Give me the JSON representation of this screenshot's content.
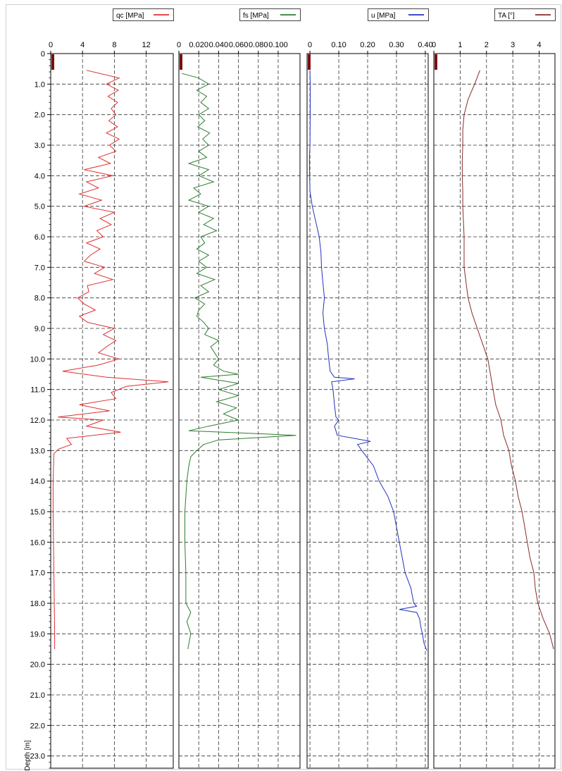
{
  "chart_data": {
    "type": "line",
    "layout": "vertical multi-track log (depth increasing downward)",
    "y_axis": {
      "label": "Depth [m]",
      "range": [
        0,
        23.4
      ],
      "ticks": [
        0,
        1,
        2,
        3,
        4,
        5,
        6,
        7,
        8,
        9,
        10,
        11,
        12,
        13,
        14,
        15,
        16,
        17,
        18,
        19,
        20,
        21,
        22,
        23
      ],
      "tick_labels": [
        "0",
        "1.0",
        "2.0",
        "3.0",
        "4.0",
        "5.0",
        "6.0",
        "7.0",
        "8.0",
        "9.0",
        "10.0",
        "11.0",
        "12.0",
        "13.0",
        "14.0",
        "15.0",
        "16.0",
        "17.0",
        "18.0",
        "19.0",
        "20.0",
        "21.0",
        "22.0",
        "23.0"
      ]
    },
    "grid": "dashed",
    "tracks": [
      {
        "name": "qc [MPa]",
        "color": "#e03030",
        "xlim": [
          0,
          15.4
        ],
        "ticks": [
          0,
          4,
          8,
          12
        ],
        "tick_labels": [
          "0",
          "4",
          "8",
          "12"
        ],
        "depth": [
          0.55,
          0.8,
          1.0,
          1.2,
          1.4,
          1.6,
          1.8,
          2.0,
          2.2,
          2.4,
          2.6,
          2.8,
          3.0,
          3.2,
          3.4,
          3.6,
          3.8,
          4.0,
          4.2,
          4.4,
          4.6,
          4.8,
          5.0,
          5.2,
          5.4,
          5.6,
          5.8,
          6.0,
          6.2,
          6.4,
          6.6,
          6.8,
          7.0,
          7.2,
          7.4,
          7.6,
          7.8,
          8.0,
          8.2,
          8.4,
          8.6,
          8.8,
          9.0,
          9.2,
          9.4,
          9.6,
          9.8,
          10.0,
          10.2,
          10.4,
          10.6,
          10.75,
          10.9,
          11.1,
          11.3,
          11.5,
          11.7,
          11.9,
          12.0,
          12.2,
          12.4,
          12.6,
          12.8,
          12.95,
          13.1,
          13.5,
          14.0,
          15.0,
          16.0,
          17.0,
          18.0,
          19.0,
          19.5
        ],
        "values": [
          4.5,
          8.6,
          7.0,
          8.5,
          7.2,
          8.4,
          7.6,
          8.2,
          7.3,
          8.4,
          7.0,
          8.6,
          7.4,
          8.2,
          6.0,
          7.5,
          4.2,
          7.8,
          4.5,
          6.0,
          3.6,
          6.4,
          4.2,
          8.0,
          6.2,
          7.6,
          5.8,
          6.6,
          4.5,
          6.2,
          5.0,
          4.2,
          6.8,
          5.5,
          7.8,
          4.6,
          4.8,
          3.4,
          4.2,
          5.6,
          3.6,
          4.6,
          8.0,
          6.6,
          8.2,
          7.0,
          6.0,
          8.6,
          6.0,
          1.5,
          7.0,
          14.8,
          9.5,
          7.6,
          8.2,
          3.6,
          7.4,
          0.9,
          6.6,
          4.5,
          8.8,
          2.0,
          2.6,
          1.0,
          0.4,
          0.35,
          0.3,
          0.3,
          0.35,
          0.4,
          0.45,
          0.5,
          0.5
        ]
      },
      {
        "name": "fs [MPa]",
        "color": "#2f7d2f",
        "xlim": [
          0,
          0.122
        ],
        "ticks": [
          0,
          0.02,
          0.04,
          0.06,
          0.08,
          0.1
        ],
        "tick_labels": [
          "0",
          "0.020",
          "0.040",
          "0.060",
          "0.080",
          "0.100"
        ],
        "depth": [
          0.65,
          0.8,
          1.0,
          1.2,
          1.4,
          1.6,
          1.8,
          2.0,
          2.2,
          2.4,
          2.6,
          2.8,
          3.0,
          3.2,
          3.4,
          3.6,
          3.8,
          4.0,
          4.2,
          4.4,
          4.6,
          4.8,
          5.0,
          5.2,
          5.4,
          5.6,
          5.8,
          6.0,
          6.2,
          6.4,
          6.6,
          6.8,
          7.0,
          7.2,
          7.4,
          7.6,
          7.8,
          8.0,
          8.2,
          8.4,
          8.6,
          8.8,
          9.0,
          9.2,
          9.4,
          9.6,
          9.8,
          10.0,
          10.2,
          10.4,
          10.5,
          10.6,
          10.8,
          11.0,
          11.2,
          11.4,
          11.6,
          11.8,
          12.0,
          12.2,
          12.35,
          12.5,
          12.65,
          12.8,
          13.0,
          13.2,
          13.5,
          14.0,
          15.0,
          16.0,
          17.0,
          18.0,
          18.3,
          18.6,
          19.0,
          19.5
        ],
        "values": [
          0.003,
          0.02,
          0.03,
          0.018,
          0.028,
          0.022,
          0.03,
          0.02,
          0.026,
          0.019,
          0.031,
          0.024,
          0.03,
          0.02,
          0.028,
          0.01,
          0.03,
          0.02,
          0.035,
          0.015,
          0.022,
          0.01,
          0.03,
          0.02,
          0.035,
          0.025,
          0.038,
          0.022,
          0.026,
          0.018,
          0.03,
          0.02,
          0.028,
          0.018,
          0.036,
          0.022,
          0.03,
          0.016,
          0.026,
          0.02,
          0.018,
          0.025,
          0.03,
          0.026,
          0.04,
          0.032,
          0.036,
          0.04,
          0.035,
          0.045,
          0.06,
          0.022,
          0.06,
          0.04,
          0.06,
          0.038,
          0.058,
          0.045,
          0.06,
          0.03,
          0.01,
          0.118,
          0.04,
          0.025,
          0.018,
          0.012,
          0.01,
          0.008,
          0.006,
          0.006,
          0.007,
          0.007,
          0.012,
          0.008,
          0.012,
          0.009
        ]
      },
      {
        "name": "u [MPa]",
        "color": "#2233bb",
        "xlim": [
          -0.01,
          0.41
        ],
        "ticks": [
          0,
          0.1,
          0.2,
          0.3,
          0.4
        ],
        "tick_labels": [
          "0",
          "0.10",
          "0.20",
          "0.30",
          "0.40"
        ],
        "depth": [
          0.55,
          1.0,
          2.0,
          3.0,
          3.5,
          4.0,
          4.5,
          5.0,
          5.5,
          6.0,
          6.5,
          7.0,
          7.5,
          8.0,
          8.5,
          9.0,
          9.5,
          10.0,
          10.4,
          10.6,
          10.65,
          10.75,
          11.0,
          11.5,
          11.9,
          12.0,
          12.2,
          12.5,
          12.7,
          12.8,
          13.0,
          13.5,
          14.0,
          14.5,
          15.0,
          15.5,
          16.0,
          16.5,
          17.0,
          17.5,
          18.0,
          18.1,
          18.2,
          18.3,
          18.5,
          18.8,
          19.0,
          19.3,
          19.55
        ],
        "values": [
          0.0,
          0.001,
          0.001,
          0.0,
          -0.002,
          -0.001,
          0.0,
          0.008,
          0.02,
          0.032,
          0.038,
          0.04,
          0.045,
          0.05,
          0.045,
          0.05,
          0.06,
          0.065,
          0.07,
          0.085,
          0.155,
          0.075,
          0.08,
          0.085,
          0.09,
          0.1,
          0.085,
          0.095,
          0.21,
          0.165,
          0.18,
          0.22,
          0.24,
          0.27,
          0.29,
          0.3,
          0.31,
          0.32,
          0.33,
          0.35,
          0.36,
          0.37,
          0.31,
          0.37,
          0.38,
          0.385,
          0.39,
          0.395,
          0.405
        ]
      },
      {
        "name": "TA [°]",
        "color": "#8a2a2a",
        "xlim": [
          0,
          4.6
        ],
        "ticks": [
          0,
          1,
          2,
          3,
          4
        ],
        "tick_labels": [
          "0",
          "1",
          "2",
          "3",
          "4"
        ],
        "depth": [
          0.55,
          1.0,
          1.5,
          2.0,
          2.5,
          3.0,
          3.5,
          4.0,
          4.5,
          5.0,
          6.0,
          7.0,
          8.0,
          8.5,
          9.0,
          9.5,
          10.0,
          10.5,
          11.0,
          11.5,
          12.0,
          12.5,
          13.0,
          13.5,
          14.0,
          14.5,
          15.0,
          15.5,
          16.0,
          16.5,
          17.0,
          17.5,
          18.0,
          18.5,
          19.0,
          19.5
        ],
        "values": [
          1.75,
          1.55,
          1.3,
          1.15,
          1.1,
          1.1,
          1.08,
          1.08,
          1.1,
          1.1,
          1.15,
          1.15,
          1.3,
          1.45,
          1.65,
          1.85,
          2.05,
          2.15,
          2.25,
          2.35,
          2.55,
          2.65,
          2.85,
          2.95,
          3.1,
          3.2,
          3.35,
          3.45,
          3.55,
          3.65,
          3.8,
          3.85,
          3.95,
          4.15,
          4.4,
          4.55
        ]
      }
    ]
  }
}
